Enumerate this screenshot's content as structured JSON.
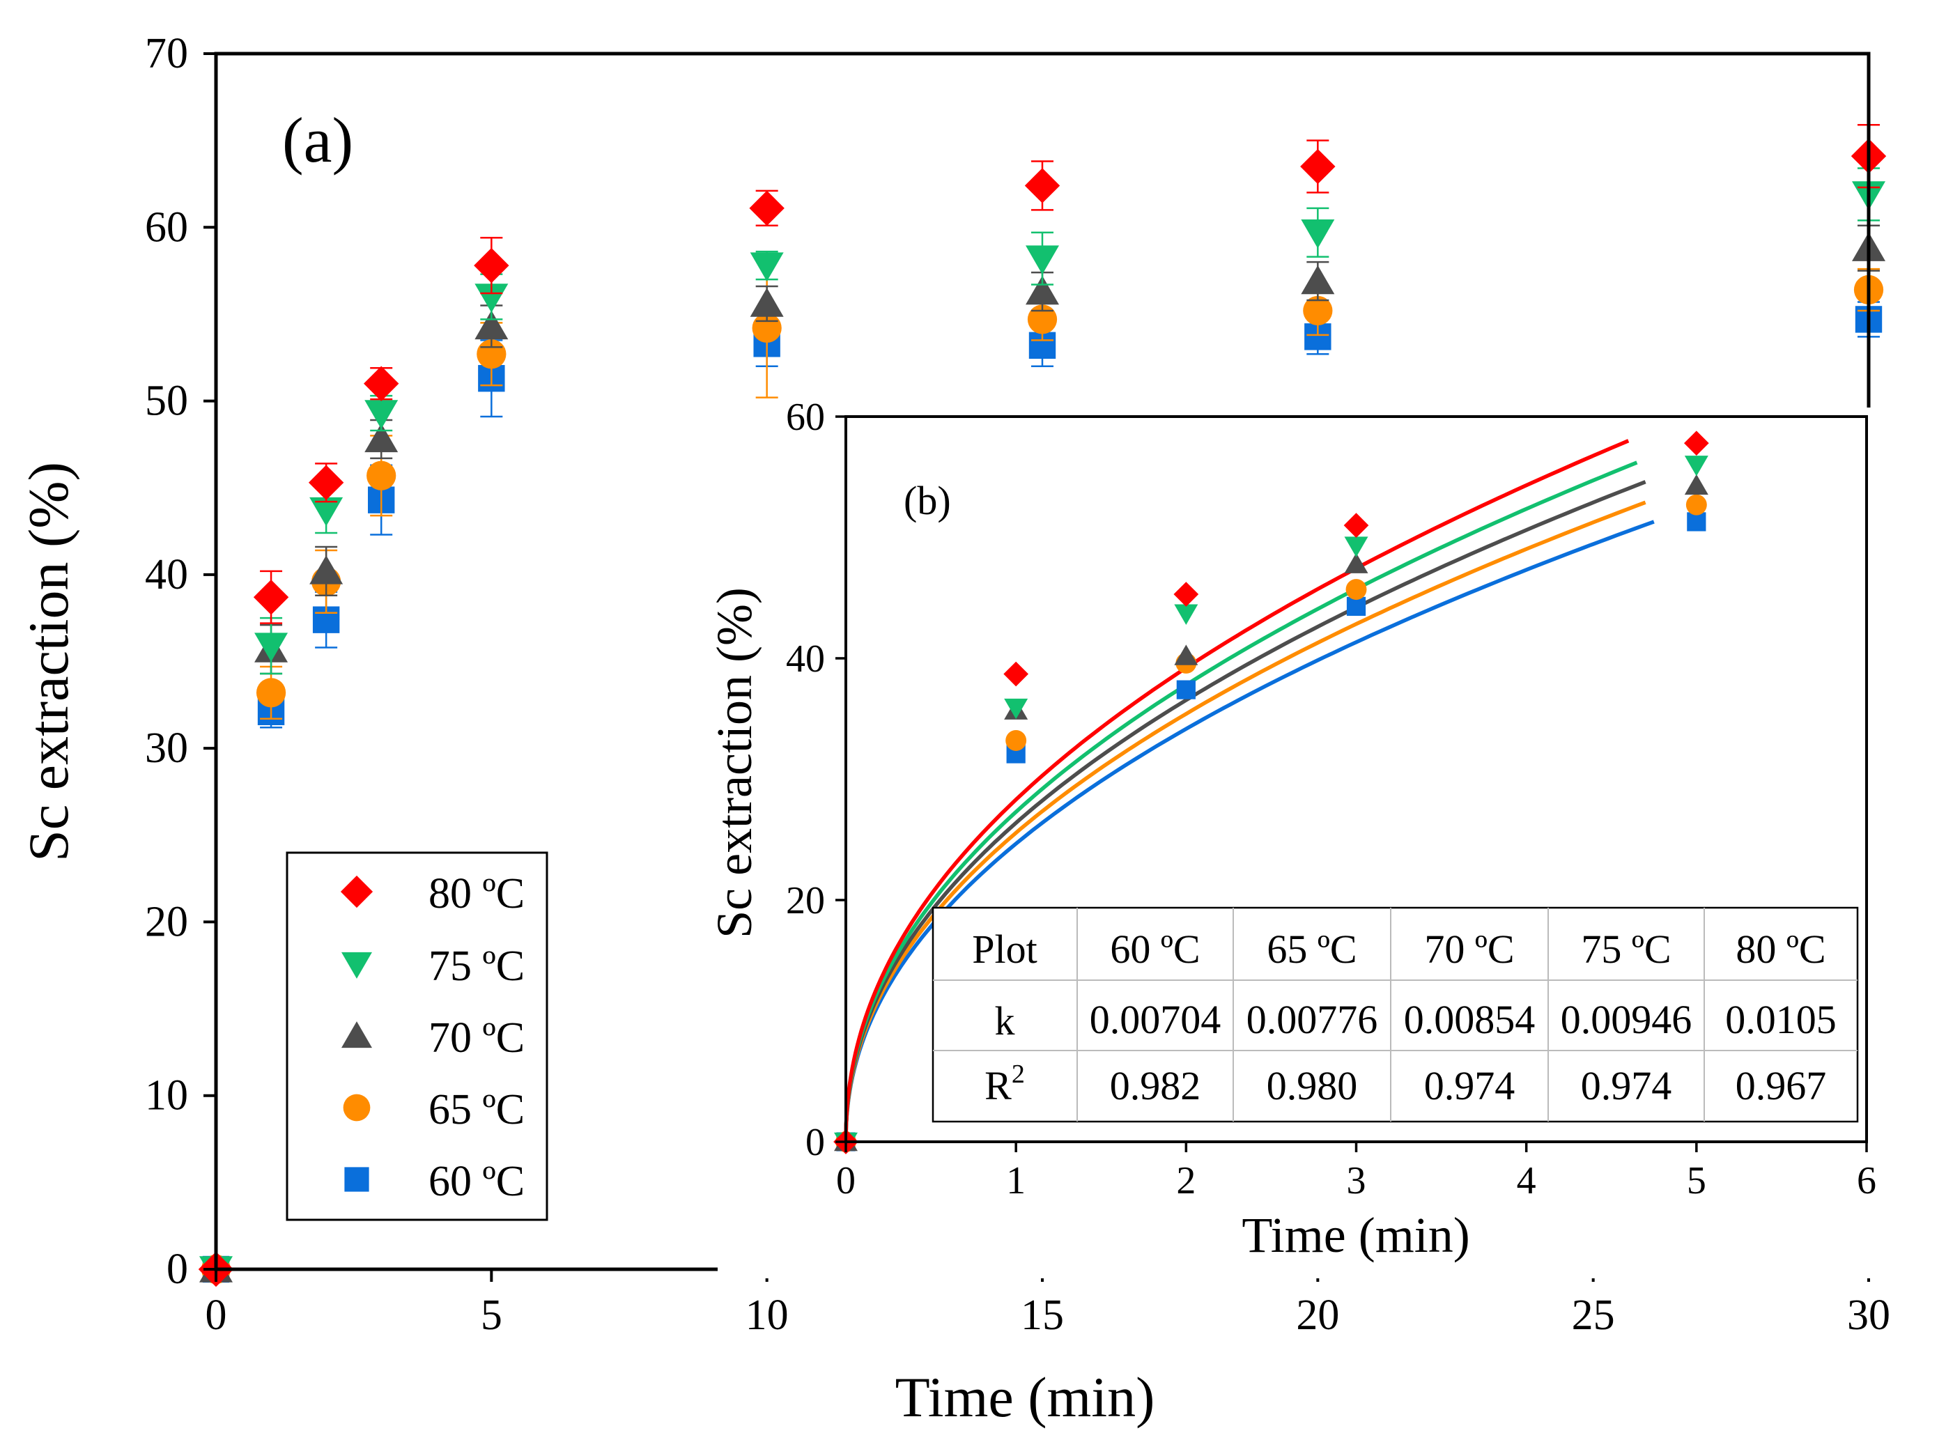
{
  "chart_data": [
    {
      "panel": "(a)",
      "type": "scatter",
      "xlabel": "Time (min)",
      "ylabel": "Sc extraction (%)",
      "xlim": [
        0,
        30
      ],
      "ylim": [
        0,
        70
      ],
      "x_ticks": [
        "0",
        "5",
        "10",
        "15",
        "20",
        "25",
        "30"
      ],
      "y_ticks": [
        "0",
        "10",
        "20",
        "30",
        "40",
        "50",
        "60",
        "70"
      ],
      "legend": [
        "80 ºC",
        "75 ºC",
        "70 ºC",
        "65 ºC",
        "60 ºC"
      ],
      "x": [
        0,
        1,
        2,
        3,
        5,
        10,
        15,
        20,
        30
      ],
      "series": [
        {
          "name": "80 ºC",
          "marker": "diamond",
          "color": "#ff0000",
          "values": [
            0,
            38.7,
            45.3,
            51.0,
            57.8,
            61.1,
            62.4,
            63.5,
            64.1
          ],
          "errors": [
            0,
            1.5,
            1.1,
            0.9,
            1.6,
            1.0,
            1.4,
            1.5,
            1.8
          ]
        },
        {
          "name": "75 ºC",
          "marker": "triangle-down",
          "color": "#12c06f",
          "values": [
            0,
            35.9,
            43.7,
            49.3,
            56.0,
            57.8,
            58.2,
            59.7,
            61.9
          ],
          "errors": [
            0,
            1.6,
            1.3,
            1.0,
            1.3,
            0.8,
            1.5,
            1.4,
            1.5
          ]
        },
        {
          "name": "70 ºC",
          "marker": "triangle-up",
          "color": "#4d4d4d",
          "values": [
            0,
            35.7,
            40.2,
            47.8,
            54.3,
            55.6,
            56.3,
            56.9,
            58.8
          ],
          "errors": [
            0,
            1.4,
            1.4,
            1.1,
            1.2,
            1.0,
            1.1,
            1.1,
            1.3
          ]
        },
        {
          "name": "65 ºC",
          "marker": "circle",
          "color": "#ff8c00",
          "values": [
            0,
            33.2,
            39.6,
            45.7,
            52.7,
            54.2,
            54.7,
            55.2,
            56.4
          ],
          "errors": [
            0,
            1.5,
            1.8,
            2.3,
            1.8,
            4.0,
            1.2,
            1.4,
            1.2
          ]
        },
        {
          "name": "60 ºC",
          "marker": "square",
          "color": "#0a6fdb",
          "values": [
            0,
            32.1,
            37.4,
            44.3,
            51.3,
            53.3,
            53.2,
            53.7,
            54.7
          ],
          "errors": [
            0,
            0.9,
            1.6,
            2.0,
            2.2,
            1.3,
            1.2,
            1.0,
            1.0
          ]
        }
      ]
    },
    {
      "panel": "(b)",
      "type": "scatter",
      "xlabel": "Time (min)",
      "ylabel": "Sc extraction (%)",
      "xlim": [
        0,
        6
      ],
      "ylim": [
        0,
        60
      ],
      "x_ticks": [
        "0",
        "1",
        "2",
        "3",
        "4",
        "5",
        "6"
      ],
      "y_ticks": [
        "0",
        "20",
        "40",
        "60"
      ],
      "x": [
        0,
        1,
        2,
        3,
        5
      ],
      "series": [
        {
          "name": "80 ºC",
          "marker": "diamond",
          "color": "#ff0000",
          "values": [
            0,
            38.7,
            45.3,
            51.0,
            57.8
          ],
          "fit_end": [
            4.6,
            58.0
          ]
        },
        {
          "name": "75 ºC",
          "marker": "triangle-down",
          "color": "#12c06f",
          "values": [
            0,
            35.9,
            43.7,
            49.3,
            56.0
          ],
          "fit_end": [
            4.65,
            56.2
          ]
        },
        {
          "name": "70 ºC",
          "marker": "triangle-up",
          "color": "#4d4d4d",
          "values": [
            0,
            35.7,
            40.2,
            47.8,
            54.3
          ],
          "fit_end": [
            4.7,
            54.6
          ]
        },
        {
          "name": "65 ºC",
          "marker": "circle",
          "color": "#ff8c00",
          "values": [
            0,
            33.2,
            39.6,
            45.7,
            52.7
          ],
          "fit_end": [
            4.7,
            52.9
          ]
        },
        {
          "name": "60 ºC",
          "marker": "square",
          "color": "#0a6fdb",
          "values": [
            0,
            32.1,
            37.4,
            44.3,
            51.3
          ],
          "fit_end": [
            4.75,
            51.3
          ]
        }
      ],
      "table": {
        "header": [
          "Plot",
          "60 ºC",
          "65 ºC",
          "70 ºC",
          "75 ºC",
          "80 ºC"
        ],
        "k": {
          "label": "k",
          "values": [
            "0.00704",
            "0.00776",
            "0.00854",
            "0.00946",
            "0.0105"
          ]
        },
        "r2": {
          "label": "R",
          "sup": "2",
          "values": [
            "0.982",
            "0.980",
            "0.974",
            "0.974",
            "0.967"
          ]
        }
      }
    }
  ]
}
